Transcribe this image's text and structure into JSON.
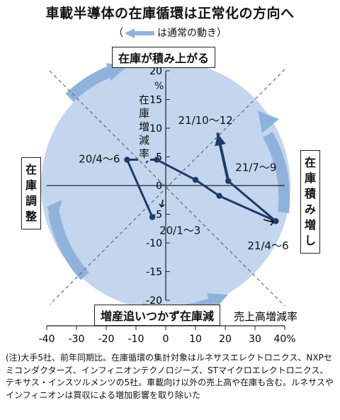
{
  "title": "車載半導体の在庫循環は正常化の方向へ",
  "subtitle": {
    "open": "（",
    "text": "は通常の動き",
    "close": "）"
  },
  "quadrant_labels": {
    "top": "在庫が積み上がる",
    "right": "在庫積み増し",
    "bottom": "増産追いつかず在庫減",
    "left": "在庫調整"
  },
  "note": "(注)大手5社、前年同期比。在庫循環の集計対象はルネサスエレクトロニクス、NXPセミコンダクターズ、インフィニオンテクノロジーズ、STマイクロエレクトロニクス、テキサス・インスツルメンツの5社。車載向け以外の売上高や在庫も含む。ルネサスやインフィニオンは買収による増加影響を取り除いた",
  "colors": {
    "circle": "#c3d6ee",
    "arrow": "#8fb2dc",
    "series": "#1f3a6b",
    "axis": "#222222",
    "dashed": "#555555"
  },
  "chart_data": {
    "type": "line",
    "xlabel": "売上高増減率",
    "xunit": "%",
    "ylabel": "在庫増減率",
    "yunit": "%",
    "xlim": [
      -40,
      40
    ],
    "ylim": [
      -20,
      20
    ],
    "xticks": [
      "-40",
      "-30",
      "-20",
      "-10",
      "0",
      "10",
      "20",
      "30",
      "40%"
    ],
    "yticks": [
      "20",
      "15",
      "10",
      "5",
      "0",
      "-5",
      "-10",
      "-15",
      "-20"
    ],
    "series": [
      {
        "points": [
          {
            "x": -4.5,
            "y": -5.5,
            "label": "20/1～3"
          },
          {
            "x": -13,
            "y": 4.5,
            "label": "20/4～6"
          },
          {
            "x": -3,
            "y": 4.5
          },
          {
            "x": 10,
            "y": 1.0
          },
          {
            "x": 18,
            "y": -1.8
          },
          {
            "x": 37,
            "y": -6.2,
            "label": "21/4～6"
          },
          {
            "x": 21,
            "y": 0.8,
            "label": "21/7～9"
          },
          {
            "x": 17.5,
            "y": 9.0,
            "label": "21/10～12"
          }
        ]
      }
    ]
  }
}
